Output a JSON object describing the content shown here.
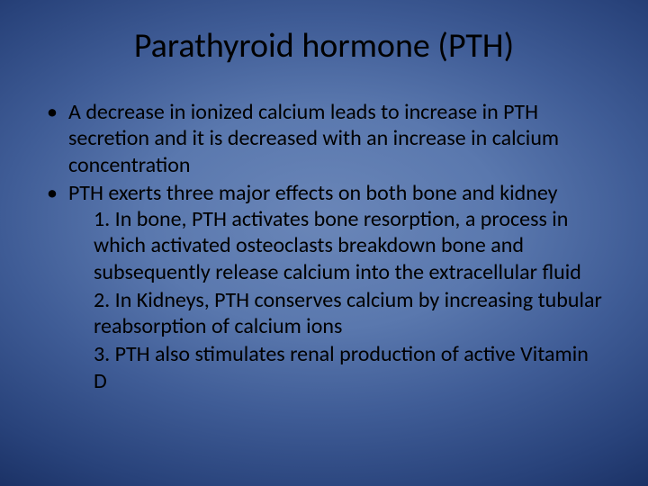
{
  "slide": {
    "title": "Parathyroid hormone (PTH)",
    "bullets": [
      "A decrease in ionized calcium leads to increase in PTH secretion and it is decreased with an increase in calcium concentration",
      "PTH exerts three major effects on both bone and kidney"
    ],
    "sub": [
      "1. In bone, PTH activates bone resorption, a process in which activated osteoclasts breakdown bone and subsequently release calcium into the extracellular fluid",
      "2. In Kidneys, PTH conserves calcium by increasing tubular reabsorption of calcium ions",
      "3.  PTH also stimulates renal production of active Vitamin D"
    ]
  },
  "style": {
    "background_gradient_center": "#6a86b8",
    "background_gradient_edge": "#0a1a42",
    "text_color": "#000000",
    "title_fontsize": 38,
    "body_fontsize": 24,
    "font_family": "Calibri"
  }
}
